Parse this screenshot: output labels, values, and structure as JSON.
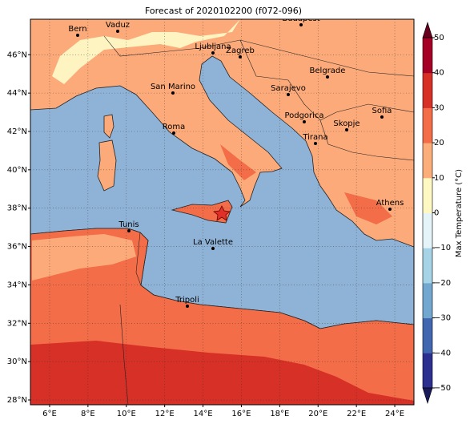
{
  "map": {
    "title": "Forecast of 2020102200 (f072-096)",
    "xlim": [
      5,
      25
    ],
    "ylim": [
      27.75,
      47.85
    ],
    "grid": true,
    "lon_ticks": [
      {
        "value": 6,
        "label": "6°E"
      },
      {
        "value": 8,
        "label": "8°E"
      },
      {
        "value": 10,
        "label": "10°E"
      },
      {
        "value": 12,
        "label": "12°E"
      },
      {
        "value": 14,
        "label": "14°E"
      },
      {
        "value": 16,
        "label": "16°E"
      },
      {
        "value": 18,
        "label": "18°E"
      },
      {
        "value": 20,
        "label": "20°E"
      },
      {
        "value": 22,
        "label": "22°E"
      },
      {
        "value": 24,
        "label": "24°E"
      }
    ],
    "lat_ticks": [
      {
        "value": 28,
        "label": "28°N"
      },
      {
        "value": 30,
        "label": "30°N"
      },
      {
        "value": 32,
        "label": "32°N"
      },
      {
        "value": 34,
        "label": "34°N"
      },
      {
        "value": 36,
        "label": "36°N"
      },
      {
        "value": 38,
        "label": "38°N"
      },
      {
        "value": 40,
        "label": "40°N"
      },
      {
        "value": 42,
        "label": "42°N"
      },
      {
        "value": 44,
        "label": "44°N"
      },
      {
        "value": 46,
        "label": "46°N"
      }
    ],
    "cities": [
      "Bern",
      "Vaduz",
      "Budapest",
      "Ljubljana",
      "Zagreb",
      "San Marino",
      "Sarajevo",
      "Belgrade",
      "Roma",
      "Podgorica",
      "Skopje",
      "Sofia",
      "Tirana",
      "Athens",
      "Tunis",
      "La Valette",
      "Tripoli"
    ],
    "colorbar": {
      "label": "Max Temperature (°C)",
      "range": [
        -50,
        50
      ],
      "ticks": [
        {
          "value": -50,
          "label": "−50"
        },
        {
          "value": -40,
          "label": "−40"
        },
        {
          "value": -30,
          "label": "−30"
        },
        {
          "value": -20,
          "label": "−20"
        },
        {
          "value": -10,
          "label": "−10"
        },
        0,
        10,
        20,
        30,
        40,
        50
      ],
      "colors": [
        "#2c2f8f",
        "#4167b0",
        "#72a7cf",
        "#a6d4e6",
        "#e4f4f8",
        "#fef8c2",
        "#fcae7a",
        "#f26d48",
        "#d73027",
        "#a50026"
      ],
      "under_color": "#1a1a5a",
      "over_color": "#67001f"
    }
  }
}
